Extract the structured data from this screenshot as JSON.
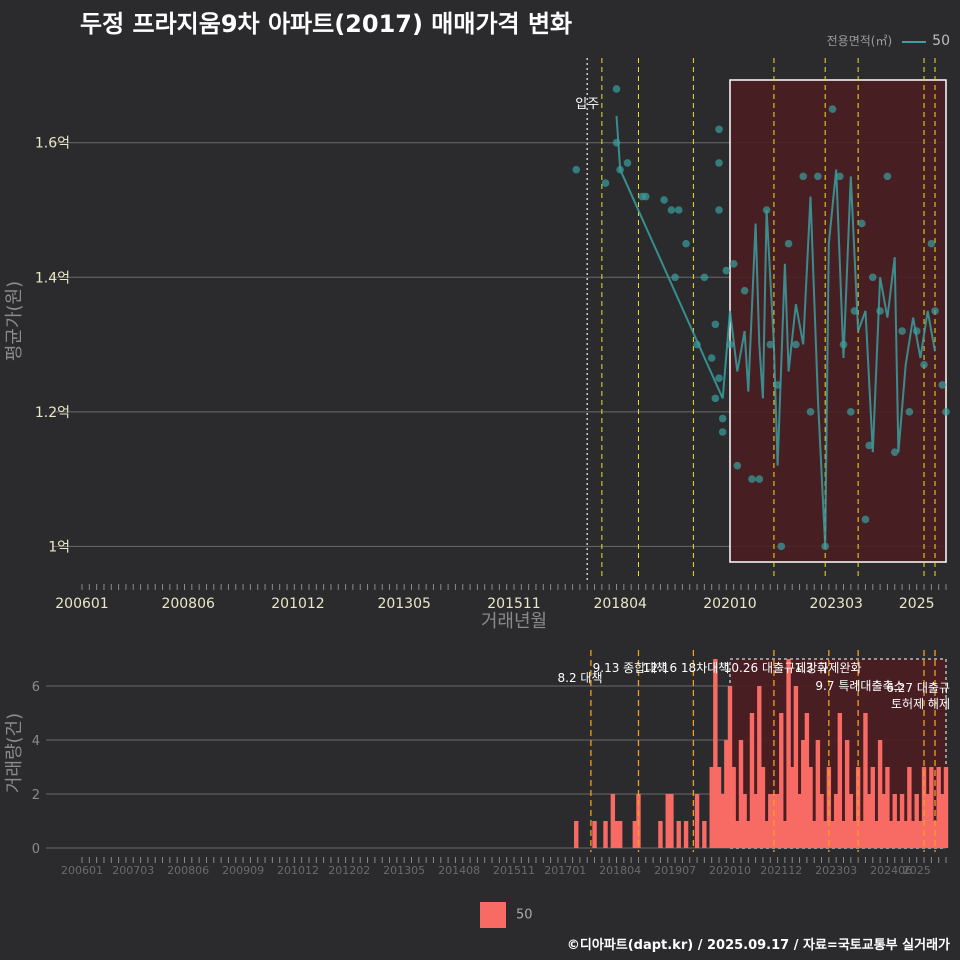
{
  "title": "두정 프라지움9차 아파트(2017) 매매가격 변화",
  "footer": "©디아파트(dapt.kr) / 2025.09.17 / 자료=국토교통부 실거래가",
  "legend": {
    "title": "전용면적(㎡)",
    "label": "50"
  },
  "colors": {
    "background": "#2b2b2d",
    "line": "#3aa0a0",
    "bar": "#f86a64",
    "highlight": "#4a1e22",
    "event_line": "#f0e020",
    "bar_event_line": "#f0a020",
    "movein": "#cccccc"
  },
  "chart_data": [
    {
      "type": "line",
      "title": "두정 프라지움9차 아파트(2017) 매매가격 변화",
      "xlabel": "거래년월",
      "ylabel": "평균가(원)",
      "xlim": [
        "2006-01",
        "2025-09"
      ],
      "ylim": [
        0.95,
        1.72
      ],
      "y_ticks": [
        1.0,
        1.2,
        1.4,
        1.6
      ],
      "y_tick_labels": [
        "1억",
        "1.2억",
        "1.4억",
        "1.6억"
      ],
      "x_tick_labels": [
        "200601",
        "200806",
        "201012",
        "201305",
        "201511",
        "201804",
        "202010",
        "202303",
        "2025"
      ],
      "movein": {
        "date": "2017-07",
        "label": "입주"
      },
      "event_dates": [
        "2017-11",
        "2018-09",
        "2019-12",
        "2021-10",
        "2022-12",
        "2023-09",
        "2025-03",
        "2025-06"
      ],
      "highlight_range": [
        "2020-10",
        "2025-09"
      ],
      "series": [
        {
          "name": "50",
          "points": [
            [
              "2017-04",
              1.56
            ],
            [
              "2017-12",
              1.54
            ],
            [
              "2018-03",
              1.68
            ],
            [
              "2018-03",
              1.6
            ],
            [
              "2018-04",
              1.56
            ],
            [
              "2018-06",
              1.57
            ],
            [
              "2018-10",
              1.52
            ],
            [
              "2018-11",
              1.52
            ],
            [
              "2019-04",
              1.515
            ],
            [
              "2019-06",
              1.5
            ],
            [
              "2019-07",
              1.4
            ],
            [
              "2019-08",
              1.5
            ],
            [
              "2019-10",
              1.45
            ],
            [
              "2020-01",
              1.3
            ],
            [
              "2020-03",
              1.4
            ],
            [
              "2020-05",
              1.28
            ],
            [
              "2020-06",
              1.33
            ],
            [
              "2020-06",
              1.22
            ],
            [
              "2020-07",
              1.62
            ],
            [
              "2020-07",
              1.57
            ],
            [
              "2020-07",
              1.5
            ],
            [
              "2020-07",
              1.25
            ],
            [
              "2020-08",
              1.17
            ],
            [
              "2020-08",
              1.19
            ],
            [
              "2020-09",
              1.41
            ],
            [
              "2020-10",
              1.3
            ],
            [
              "2020-11",
              1.42
            ],
            [
              "2020-12",
              1.12
            ],
            [
              "2021-02",
              1.38
            ],
            [
              "2021-04",
              1.1
            ],
            [
              "2021-06",
              1.1
            ],
            [
              "2021-08",
              1.5
            ],
            [
              "2021-09",
              1.3
            ],
            [
              "2021-11",
              1.24
            ],
            [
              "2021-12",
              1.0
            ],
            [
              "2022-02",
              1.45
            ],
            [
              "2022-04",
              1.3
            ],
            [
              "2022-06",
              1.55
            ],
            [
              "2022-08",
              1.2
            ],
            [
              "2022-10",
              1.55
            ],
            [
              "2022-12",
              1.0
            ],
            [
              "2023-02",
              1.65
            ],
            [
              "2023-04",
              1.55
            ],
            [
              "2023-05",
              1.3
            ],
            [
              "2023-07",
              1.2
            ],
            [
              "2023-08",
              1.35
            ],
            [
              "2023-10",
              1.48
            ],
            [
              "2023-11",
              1.04
            ],
            [
              "2023-12",
              1.15
            ],
            [
              "2024-01",
              1.4
            ],
            [
              "2024-03",
              1.35
            ],
            [
              "2024-05",
              1.55
            ],
            [
              "2024-07",
              1.14
            ],
            [
              "2024-09",
              1.32
            ],
            [
              "2024-11",
              1.2
            ],
            [
              "2025-01",
              1.32
            ],
            [
              "2025-03",
              1.27
            ],
            [
              "2025-05",
              1.45
            ],
            [
              "2025-06",
              1.35
            ],
            [
              "2025-08",
              1.24
            ],
            [
              "2025-09",
              1.2
            ]
          ]
        }
      ],
      "trend_line": [
        [
          "2018-03",
          1.64
        ],
        [
          "2018-04",
          1.56
        ],
        [
          "2020-08",
          1.22
        ],
        [
          "2020-10",
          1.35
        ],
        [
          "2020-12",
          1.26
        ],
        [
          "2021-02",
          1.32
        ],
        [
          "2021-03",
          1.23
        ],
        [
          "2021-05",
          1.48
        ],
        [
          "2021-06",
          1.3
        ],
        [
          "2021-07",
          1.22
        ],
        [
          "2021-08",
          1.5
        ],
        [
          "2021-10",
          1.3
        ],
        [
          "2021-11",
          1.12
        ],
        [
          "2022-01",
          1.42
        ],
        [
          "2022-02",
          1.26
        ],
        [
          "2022-04",
          1.36
        ],
        [
          "2022-06",
          1.3
        ],
        [
          "2022-08",
          1.52
        ],
        [
          "2022-10",
          1.22
        ],
        [
          "2022-12",
          1.0
        ],
        [
          "2023-01",
          1.45
        ],
        [
          "2023-03",
          1.56
        ],
        [
          "2023-05",
          1.28
        ],
        [
          "2023-07",
          1.55
        ],
        [
          "2023-09",
          1.32
        ],
        [
          "2023-11",
          1.35
        ],
        [
          "2024-01",
          1.14
        ],
        [
          "2024-03",
          1.4
        ],
        [
          "2024-05",
          1.34
        ],
        [
          "2024-07",
          1.43
        ],
        [
          "2024-08",
          1.14
        ],
        [
          "2024-10",
          1.27
        ],
        [
          "2024-12",
          1.34
        ],
        [
          "2025-02",
          1.28
        ],
        [
          "2025-04",
          1.35
        ],
        [
          "2025-06",
          1.29
        ]
      ]
    },
    {
      "type": "bar",
      "xlabel": "",
      "ylabel": "거래량(건)",
      "xlim": [
        "2006-01",
        "2025-09"
      ],
      "ylim": [
        0,
        7
      ],
      "y_ticks": [
        0,
        2,
        4,
        6
      ],
      "x_tick_labels": [
        "200601",
        "200703",
        "200806",
        "200909",
        "201012",
        "201202",
        "201305",
        "201408",
        "201511",
        "201701",
        "201804",
        "201907",
        "202010",
        "202112",
        "202303",
        "202406",
        "2025"
      ],
      "event_dates": [
        "2017-08",
        "2018-09",
        "2019-12",
        "2021-10",
        "2023-01",
        "2023-09",
        "2025-03",
        "2025-06"
      ],
      "event_labels": [
        {
          "date": "2017-08",
          "label": "8.2 대책"
        },
        {
          "date": "2018-09",
          "label": "9.13 종합대책"
        },
        {
          "date": "2019-12",
          "label": "12.16 18차대책"
        },
        {
          "date": "2021-10",
          "label": "10.26 대출규제강화"
        },
        {
          "date": "2023-01",
          "label": "1.3 규제완화"
        },
        {
          "date": "2023-09",
          "label": "9.7 특례대출축소"
        },
        {
          "date": "2025-03",
          "label": "토허제 해제"
        },
        {
          "date": "2025-06",
          "label": "6.27 대출규"
        }
      ],
      "highlight_range": [
        "2020-10",
        "2025-09"
      ],
      "series": [
        {
          "name": "50",
          "data": [
            [
              "2017-04",
              1
            ],
            [
              "2017-09",
              1
            ],
            [
              "2017-12",
              1
            ],
            [
              "2018-02",
              2
            ],
            [
              "2018-03",
              1
            ],
            [
              "2018-04",
              1
            ],
            [
              "2018-08",
              1
            ],
            [
              "2018-09",
              2
            ],
            [
              "2019-03",
              1
            ],
            [
              "2019-05",
              2
            ],
            [
              "2019-06",
              2
            ],
            [
              "2019-08",
              1
            ],
            [
              "2019-10",
              1
            ],
            [
              "2020-01",
              2
            ],
            [
              "2020-03",
              1
            ],
            [
              "2020-05",
              3
            ],
            [
              "2020-06",
              7
            ],
            [
              "2020-07",
              3
            ],
            [
              "2020-08",
              2
            ],
            [
              "2020-09",
              4
            ],
            [
              "2020-10",
              6
            ],
            [
              "2020-11",
              3
            ],
            [
              "2020-12",
              1
            ],
            [
              "2021-01",
              4
            ],
            [
              "2021-02",
              2
            ],
            [
              "2021-03",
              1
            ],
            [
              "2021-04",
              5
            ],
            [
              "2021-05",
              2
            ],
            [
              "2021-06",
              6
            ],
            [
              "2021-07",
              3
            ],
            [
              "2021-08",
              1
            ],
            [
              "2021-09",
              2
            ],
            [
              "2021-10",
              2
            ],
            [
              "2021-11",
              2
            ],
            [
              "2021-12",
              5
            ],
            [
              "2022-01",
              1
            ],
            [
              "2022-02",
              7
            ],
            [
              "2022-03",
              3
            ],
            [
              "2022-04",
              6
            ],
            [
              "2022-05",
              2
            ],
            [
              "2022-06",
              4
            ],
            [
              "2022-07",
              5
            ],
            [
              "2022-08",
              3
            ],
            [
              "2022-09",
              1
            ],
            [
              "2022-10",
              4
            ],
            [
              "2022-11",
              2
            ],
            [
              "2022-12",
              1
            ],
            [
              "2023-01",
              3
            ],
            [
              "2023-02",
              1
            ],
            [
              "2023-03",
              2
            ],
            [
              "2023-04",
              5
            ],
            [
              "2023-05",
              1
            ],
            [
              "2023-06",
              4
            ],
            [
              "2023-07",
              2
            ],
            [
              "2023-08",
              1
            ],
            [
              "2023-09",
              3
            ],
            [
              "2023-10",
              1
            ],
            [
              "2023-11",
              5
            ],
            [
              "2023-12",
              2
            ],
            [
              "2024-01",
              3
            ],
            [
              "2024-02",
              1
            ],
            [
              "2024-03",
              4
            ],
            [
              "2024-04",
              2
            ],
            [
              "2024-05",
              3
            ],
            [
              "2024-06",
              1
            ],
            [
              "2024-07",
              2
            ],
            [
              "2024-08",
              1
            ],
            [
              "2024-09",
              2
            ],
            [
              "2024-10",
              1
            ],
            [
              "2024-11",
              3
            ],
            [
              "2024-12",
              1
            ],
            [
              "2025-01",
              2
            ],
            [
              "2025-02",
              1
            ],
            [
              "2025-03",
              3
            ],
            [
              "2025-04",
              2
            ],
            [
              "2025-05",
              3
            ],
            [
              "2025-06",
              1
            ],
            [
              "2025-07",
              3
            ],
            [
              "2025-08",
              2
            ],
            [
              "2025-09",
              3
            ]
          ]
        }
      ]
    }
  ]
}
